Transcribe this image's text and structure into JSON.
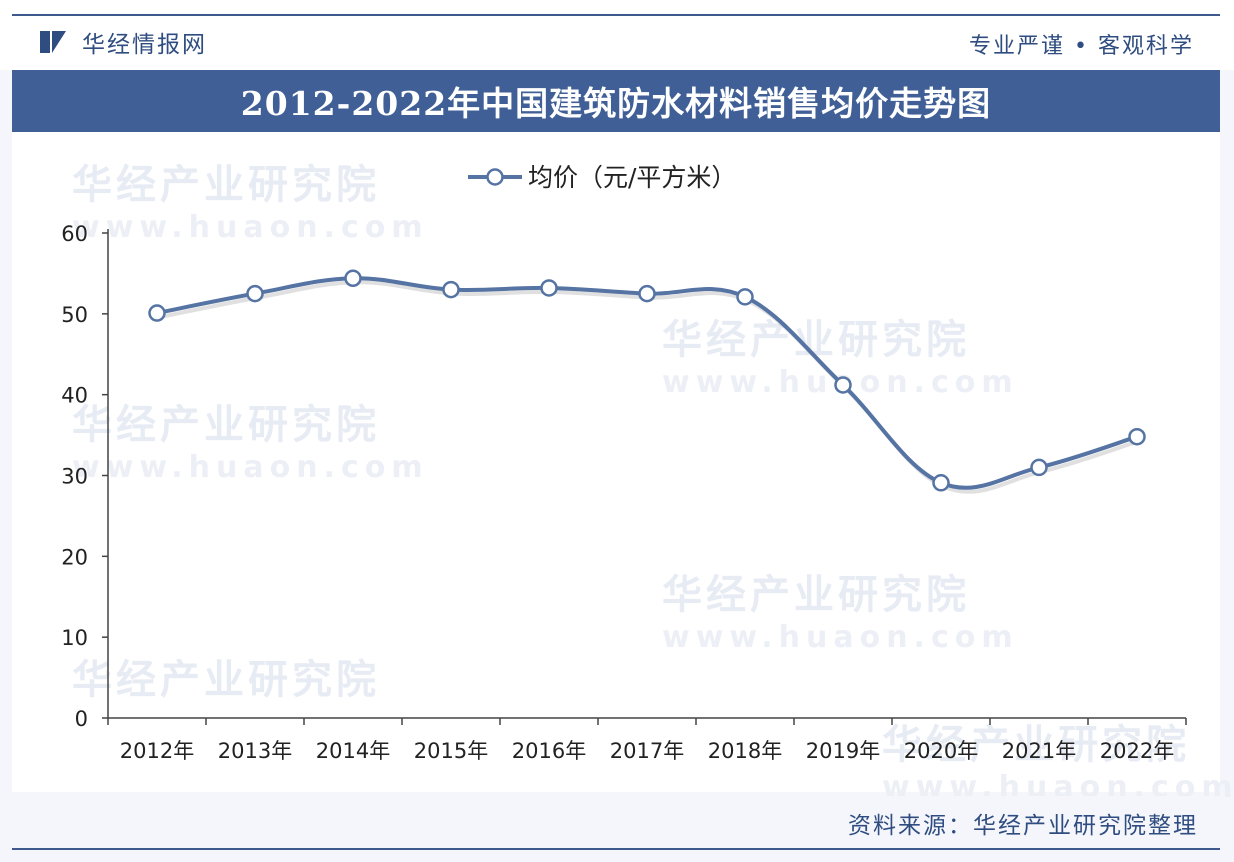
{
  "header": {
    "brand": "华经情报网",
    "slogan": "专业严谨 • 客观科学"
  },
  "title": "2012-2022年中国建筑防水材料销售均价走势图",
  "watermark": {
    "text": "华经产业研究院",
    "url": "www.huaon.com"
  },
  "source": "资料来源：华经产业研究院整理",
  "colors": {
    "accent": "#3f5f96",
    "line": "#5573a3",
    "axis": "#444444"
  },
  "chart_data": {
    "type": "line",
    "categories": [
      "2012年",
      "2013年",
      "2014年",
      "2015年",
      "2016年",
      "2017年",
      "2018年",
      "2019年",
      "2020年",
      "2021年",
      "2022年"
    ],
    "series": [
      {
        "name": "均价（元/平方米）",
        "values": [
          50.1,
          52.5,
          54.4,
          53.0,
          53.2,
          52.5,
          52.1,
          41.2,
          29.1,
          31.0,
          34.8
        ]
      }
    ],
    "yticks": [
      0,
      10,
      20,
      30,
      40,
      50,
      60
    ],
    "ylim": [
      0,
      60
    ],
    "legend_position": "top-center",
    "grid": false,
    "title": "2012-2022年中国建筑防水材料销售均价走势图"
  }
}
